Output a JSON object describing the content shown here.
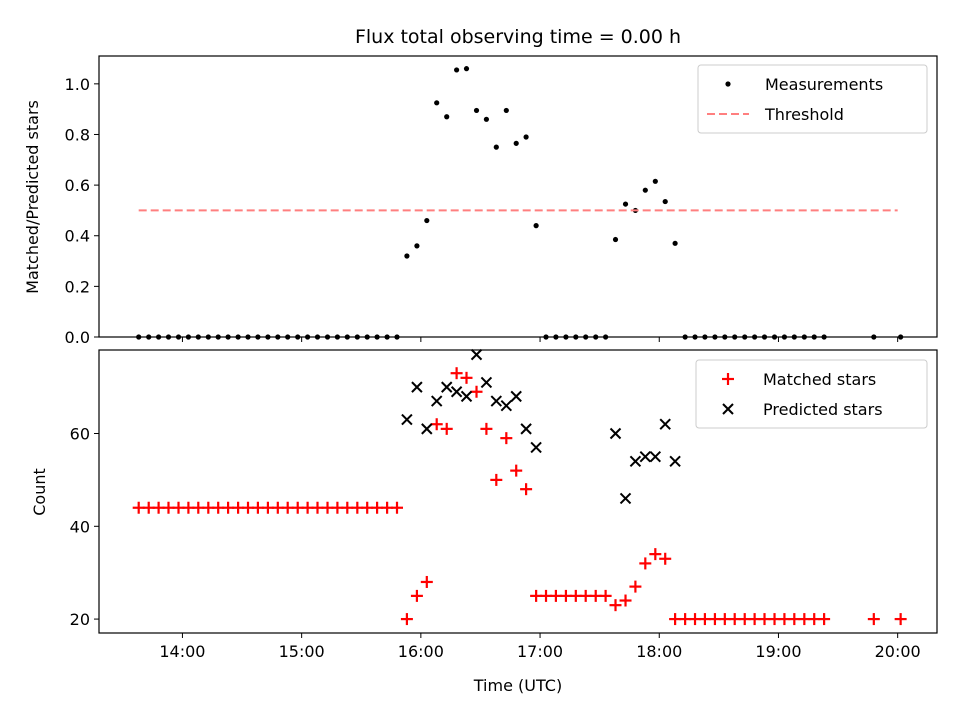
{
  "chart_data": [
    {
      "type": "scatter",
      "title": "Flux total observing time = 0.00 h",
      "xlabel": "",
      "ylabel": "Matched/Predicted stars",
      "xlim": [
        13.3,
        20.33
      ],
      "ylim": [
        0,
        1.11
      ],
      "yticks": [
        0,
        0.2,
        0.4,
        0.6,
        0.8,
        1.0
      ],
      "ytick_labels": [
        "0.0",
        "0.2",
        "0.4",
        "0.6",
        "0.8",
        "1.0"
      ],
      "grid": false,
      "legend_position": "top-right",
      "series": [
        {
          "name": "Measurements",
          "kind": "scatter",
          "marker": "dot",
          "color": "#000000",
          "x": [
            13.633,
            13.717,
            13.8,
            13.883,
            13.967,
            14.05,
            14.133,
            14.217,
            14.3,
            14.383,
            14.467,
            14.55,
            14.633,
            14.717,
            14.8,
            14.883,
            14.967,
            15.05,
            15.133,
            15.217,
            15.3,
            15.383,
            15.467,
            15.55,
            15.633,
            15.717,
            15.8,
            15.883,
            15.967,
            16.05,
            16.133,
            16.217,
            16.3,
            16.383,
            16.467,
            16.55,
            16.633,
            16.717,
            16.8,
            16.883,
            16.967,
            17.05,
            17.133,
            17.217,
            17.3,
            17.383,
            17.467,
            17.55,
            17.633,
            17.717,
            17.8,
            17.883,
            17.967,
            18.05,
            18.133,
            18.217,
            18.3,
            18.383,
            18.467,
            18.55,
            18.633,
            18.717,
            18.8,
            18.883,
            18.967,
            19.05,
            19.133,
            19.217,
            19.3,
            19.383,
            19.8,
            20.025
          ],
          "y": [
            0,
            0,
            0,
            0,
            0,
            0,
            0,
            0,
            0,
            0,
            0,
            0,
            0,
            0,
            0,
            0,
            0,
            0,
            0,
            0,
            0,
            0,
            0,
            0,
            0,
            0,
            0,
            0.32,
            0.36,
            0.46,
            0.925,
            0.87,
            1.055,
            1.06,
            0.895,
            0.86,
            0.75,
            0.895,
            0.765,
            0.79,
            0.44,
            0,
            0,
            0,
            0,
            0,
            0,
            0,
            0.385,
            0.525,
            0.5,
            0.58,
            0.615,
            0.535,
            0.37,
            0,
            0,
            0,
            0,
            0,
            0,
            0,
            0,
            0,
            0,
            0,
            0,
            0,
            0,
            0,
            0,
            0
          ]
        },
        {
          "name": "Threshold",
          "kind": "line",
          "style": "dashed",
          "color": "#ff7f7f",
          "x": [
            13.633,
            20.0
          ],
          "y": [
            0.5,
            0.5
          ]
        }
      ]
    },
    {
      "type": "scatter",
      "title": "",
      "xlabel": "Time (UTC)",
      "ylabel": "Count",
      "xlim": [
        13.3,
        20.33
      ],
      "ylim": [
        17,
        78
      ],
      "yticks": [
        20,
        40,
        60
      ],
      "ytick_labels": [
        "20",
        "40",
        "60"
      ],
      "xticks": [
        14,
        15,
        16,
        17,
        18,
        19,
        20
      ],
      "xtick_labels": [
        "14:00",
        "15:00",
        "16:00",
        "17:00",
        "18:00",
        "19:00",
        "20:00"
      ],
      "grid": false,
      "legend_position": "top-right",
      "series": [
        {
          "name": "Matched stars",
          "kind": "scatter",
          "marker": "plus",
          "color": "#ff0000",
          "x": [
            13.633,
            13.717,
            13.8,
            13.883,
            13.967,
            14.05,
            14.133,
            14.217,
            14.3,
            14.383,
            14.467,
            14.55,
            14.633,
            14.717,
            14.8,
            14.883,
            14.967,
            15.05,
            15.133,
            15.217,
            15.3,
            15.383,
            15.467,
            15.55,
            15.633,
            15.717,
            15.8,
            15.883,
            15.967,
            16.05,
            16.133,
            16.217,
            16.3,
            16.383,
            16.467,
            16.55,
            16.633,
            16.717,
            16.8,
            16.883,
            16.967,
            17.05,
            17.133,
            17.217,
            17.3,
            17.383,
            17.467,
            17.55,
            17.633,
            17.717,
            17.8,
            17.883,
            17.967,
            18.05,
            18.133,
            18.217,
            18.3,
            18.383,
            18.467,
            18.55,
            18.633,
            18.717,
            18.8,
            18.883,
            18.967,
            19.05,
            19.133,
            19.217,
            19.3,
            19.383,
            19.8,
            20.025
          ],
          "y": [
            44,
            44,
            44,
            44,
            44,
            44,
            44,
            44,
            44,
            44,
            44,
            44,
            44,
            44,
            44,
            44,
            44,
            44,
            44,
            44,
            44,
            44,
            44,
            44,
            44,
            44,
            44,
            20,
            25,
            28,
            62,
            61,
            73,
            72,
            69,
            61,
            50,
            59,
            52,
            48,
            25,
            25,
            25,
            25,
            25,
            25,
            25,
            25,
            23,
            24,
            27,
            32,
            34,
            33,
            20,
            20,
            20,
            20,
            20,
            20,
            20,
            20,
            20,
            20,
            20,
            20,
            20,
            20,
            20,
            20,
            20,
            20
          ]
        },
        {
          "name": "Predicted stars",
          "kind": "scatter",
          "marker": "x",
          "color": "#000000",
          "x": [
            15.883,
            15.967,
            16.05,
            16.133,
            16.217,
            16.3,
            16.383,
            16.467,
            16.55,
            16.633,
            16.717,
            16.8,
            16.883,
            16.967,
            17.633,
            17.717,
            17.8,
            17.883,
            17.967,
            18.05,
            18.133
          ],
          "y": [
            63,
            70,
            61,
            67,
            70,
            69,
            68,
            77,
            71,
            67,
            66,
            68,
            61,
            57,
            60,
            46,
            54,
            55,
            55,
            62,
            54
          ]
        }
      ]
    }
  ]
}
